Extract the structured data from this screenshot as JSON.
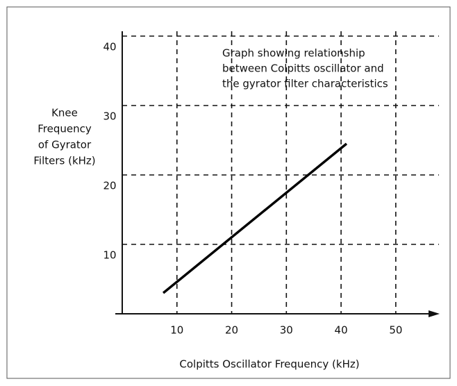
{
  "chart_data": {
    "type": "line",
    "annotation": [
      "Graph showing relationship",
      "between Colpitts oscillator and",
      "the gyrator filter characteristics"
    ],
    "ylabel": [
      "Knee",
      "Frequency",
      "of Gyrator",
      "Filters (kHz)"
    ],
    "xlabel": "Colpitts  Oscillator Frequency (kHz)",
    "x": [
      7.5,
      41
    ],
    "values": [
      3,
      24.5
    ],
    "color": "#000000",
    "xlim": [
      0,
      57
    ],
    "xticks": [
      10,
      20,
      30,
      40,
      50
    ],
    "ylim": [
      0,
      40
    ],
    "yticks": [
      10,
      20,
      30,
      40
    ],
    "grid": true
  }
}
